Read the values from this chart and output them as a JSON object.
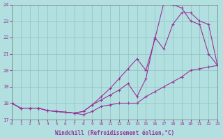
{
  "xlabel": "Windchill (Refroidissement éolien,°C)",
  "bg_color": "#b2e0e0",
  "grid_color": "#8fbfbf",
  "line_color": "#993399",
  "xlim": [
    0,
    23
  ],
  "ylim": [
    17,
    24
  ],
  "xticks": [
    0,
    1,
    2,
    3,
    4,
    5,
    6,
    7,
    8,
    9,
    10,
    11,
    12,
    13,
    14,
    15,
    16,
    17,
    18,
    19,
    20,
    21,
    22,
    23
  ],
  "yticks": [
    17,
    18,
    19,
    20,
    21,
    22,
    23,
    24
  ],
  "curve1": [
    18.0,
    17.7,
    17.7,
    17.7,
    17.55,
    17.5,
    17.45,
    17.4,
    17.3,
    17.5,
    17.8,
    17.9,
    18.0,
    18.0,
    18.0,
    18.4,
    18.7,
    19.0,
    19.3,
    19.6,
    20.0,
    20.1,
    20.2,
    20.3
  ],
  "curve2": [
    18.0,
    17.7,
    17.7,
    17.7,
    17.55,
    17.5,
    17.45,
    17.4,
    17.5,
    17.9,
    18.2,
    18.5,
    18.8,
    19.2,
    18.4,
    19.5,
    22.0,
    21.3,
    22.8,
    23.5,
    23.5,
    23.0,
    22.8,
    20.3
  ],
  "curve3": [
    18.0,
    17.7,
    17.7,
    17.7,
    17.55,
    17.5,
    17.45,
    17.4,
    17.5,
    17.9,
    18.4,
    18.9,
    19.5,
    20.1,
    20.7,
    20.0,
    21.9,
    24.1,
    24.0,
    23.8,
    23.0,
    22.8,
    21.0,
    20.3
  ]
}
